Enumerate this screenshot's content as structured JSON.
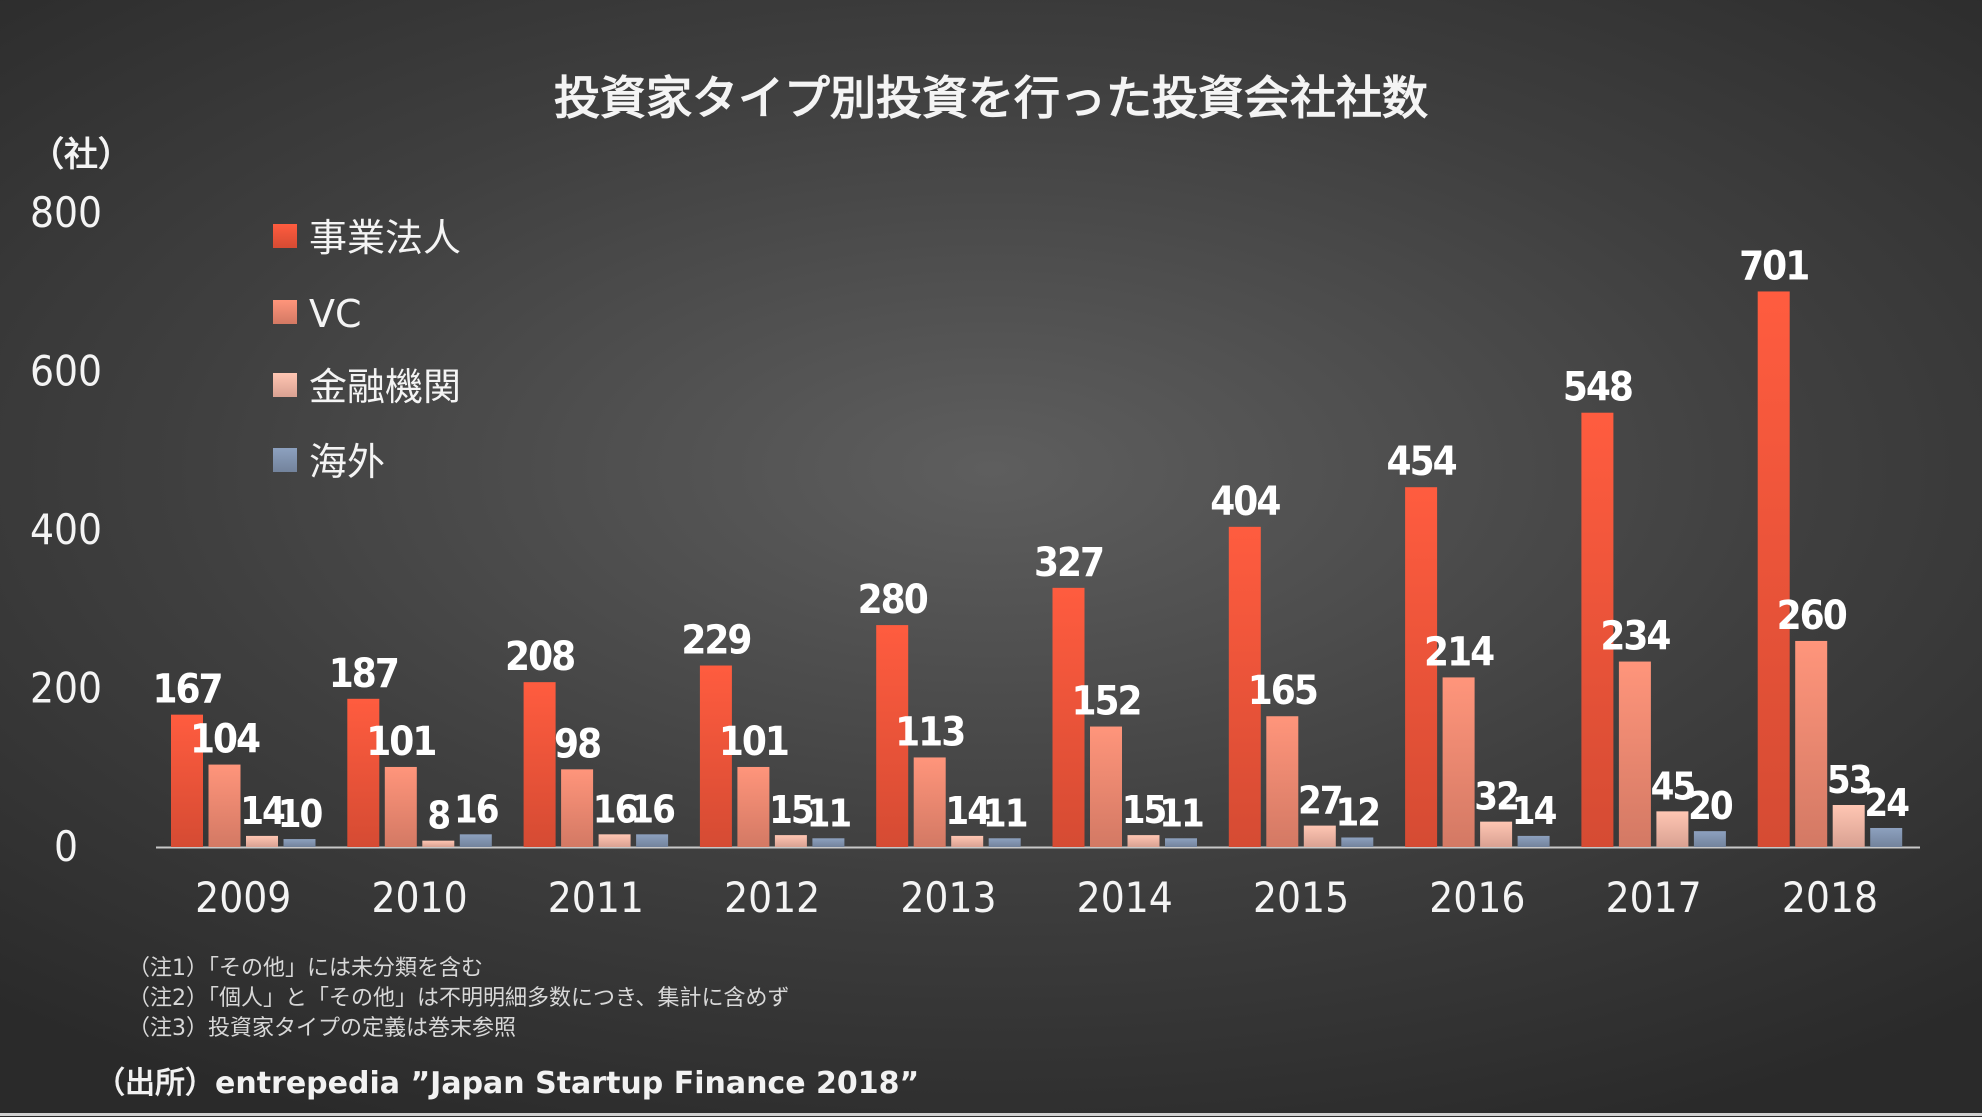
{
  "chart_data": {
    "type": "bar",
    "title": "投資家タイプ別投資を行った投資会社社数",
    "ylabel": "（社）",
    "xlabel": "",
    "ylim": [
      0,
      800
    ],
    "yticks": [
      "0",
      "200",
      "400",
      "600",
      "800"
    ],
    "categories": [
      "2009",
      "2010",
      "2011",
      "2012",
      "2013",
      "2014",
      "2015",
      "2016",
      "2017",
      "2018"
    ],
    "series": [
      {
        "name": "事業法人",
        "color": "#f2553a",
        "values": [
          167,
          187,
          208,
          229,
          280,
          327,
          404,
          454,
          548,
          701
        ]
      },
      {
        "name": "VC",
        "color": "#f08a72",
        "values": [
          104,
          101,
          98,
          101,
          113,
          152,
          165,
          214,
          234,
          260
        ]
      },
      {
        "name": "金融機関",
        "color": "#f7b7a6",
        "values": [
          14,
          8,
          16,
          15,
          14,
          15,
          27,
          32,
          45,
          53
        ]
      },
      {
        "name": "海外",
        "color": "#8395b1",
        "values": [
          10,
          16,
          16,
          11,
          11,
          11,
          12,
          14,
          20,
          24
        ]
      }
    ],
    "legend_position": "top-left",
    "grid": false
  },
  "notes": [
    "（注1）「その他」には未分類を含む",
    "（注2）「個人」と「その他」は不明明細多数につき、集計に含めず",
    "（注3）投資家タイプの定義は巻末参照"
  ],
  "source": "（出所）entrepedia ”Japan Startup Finance 2018”"
}
